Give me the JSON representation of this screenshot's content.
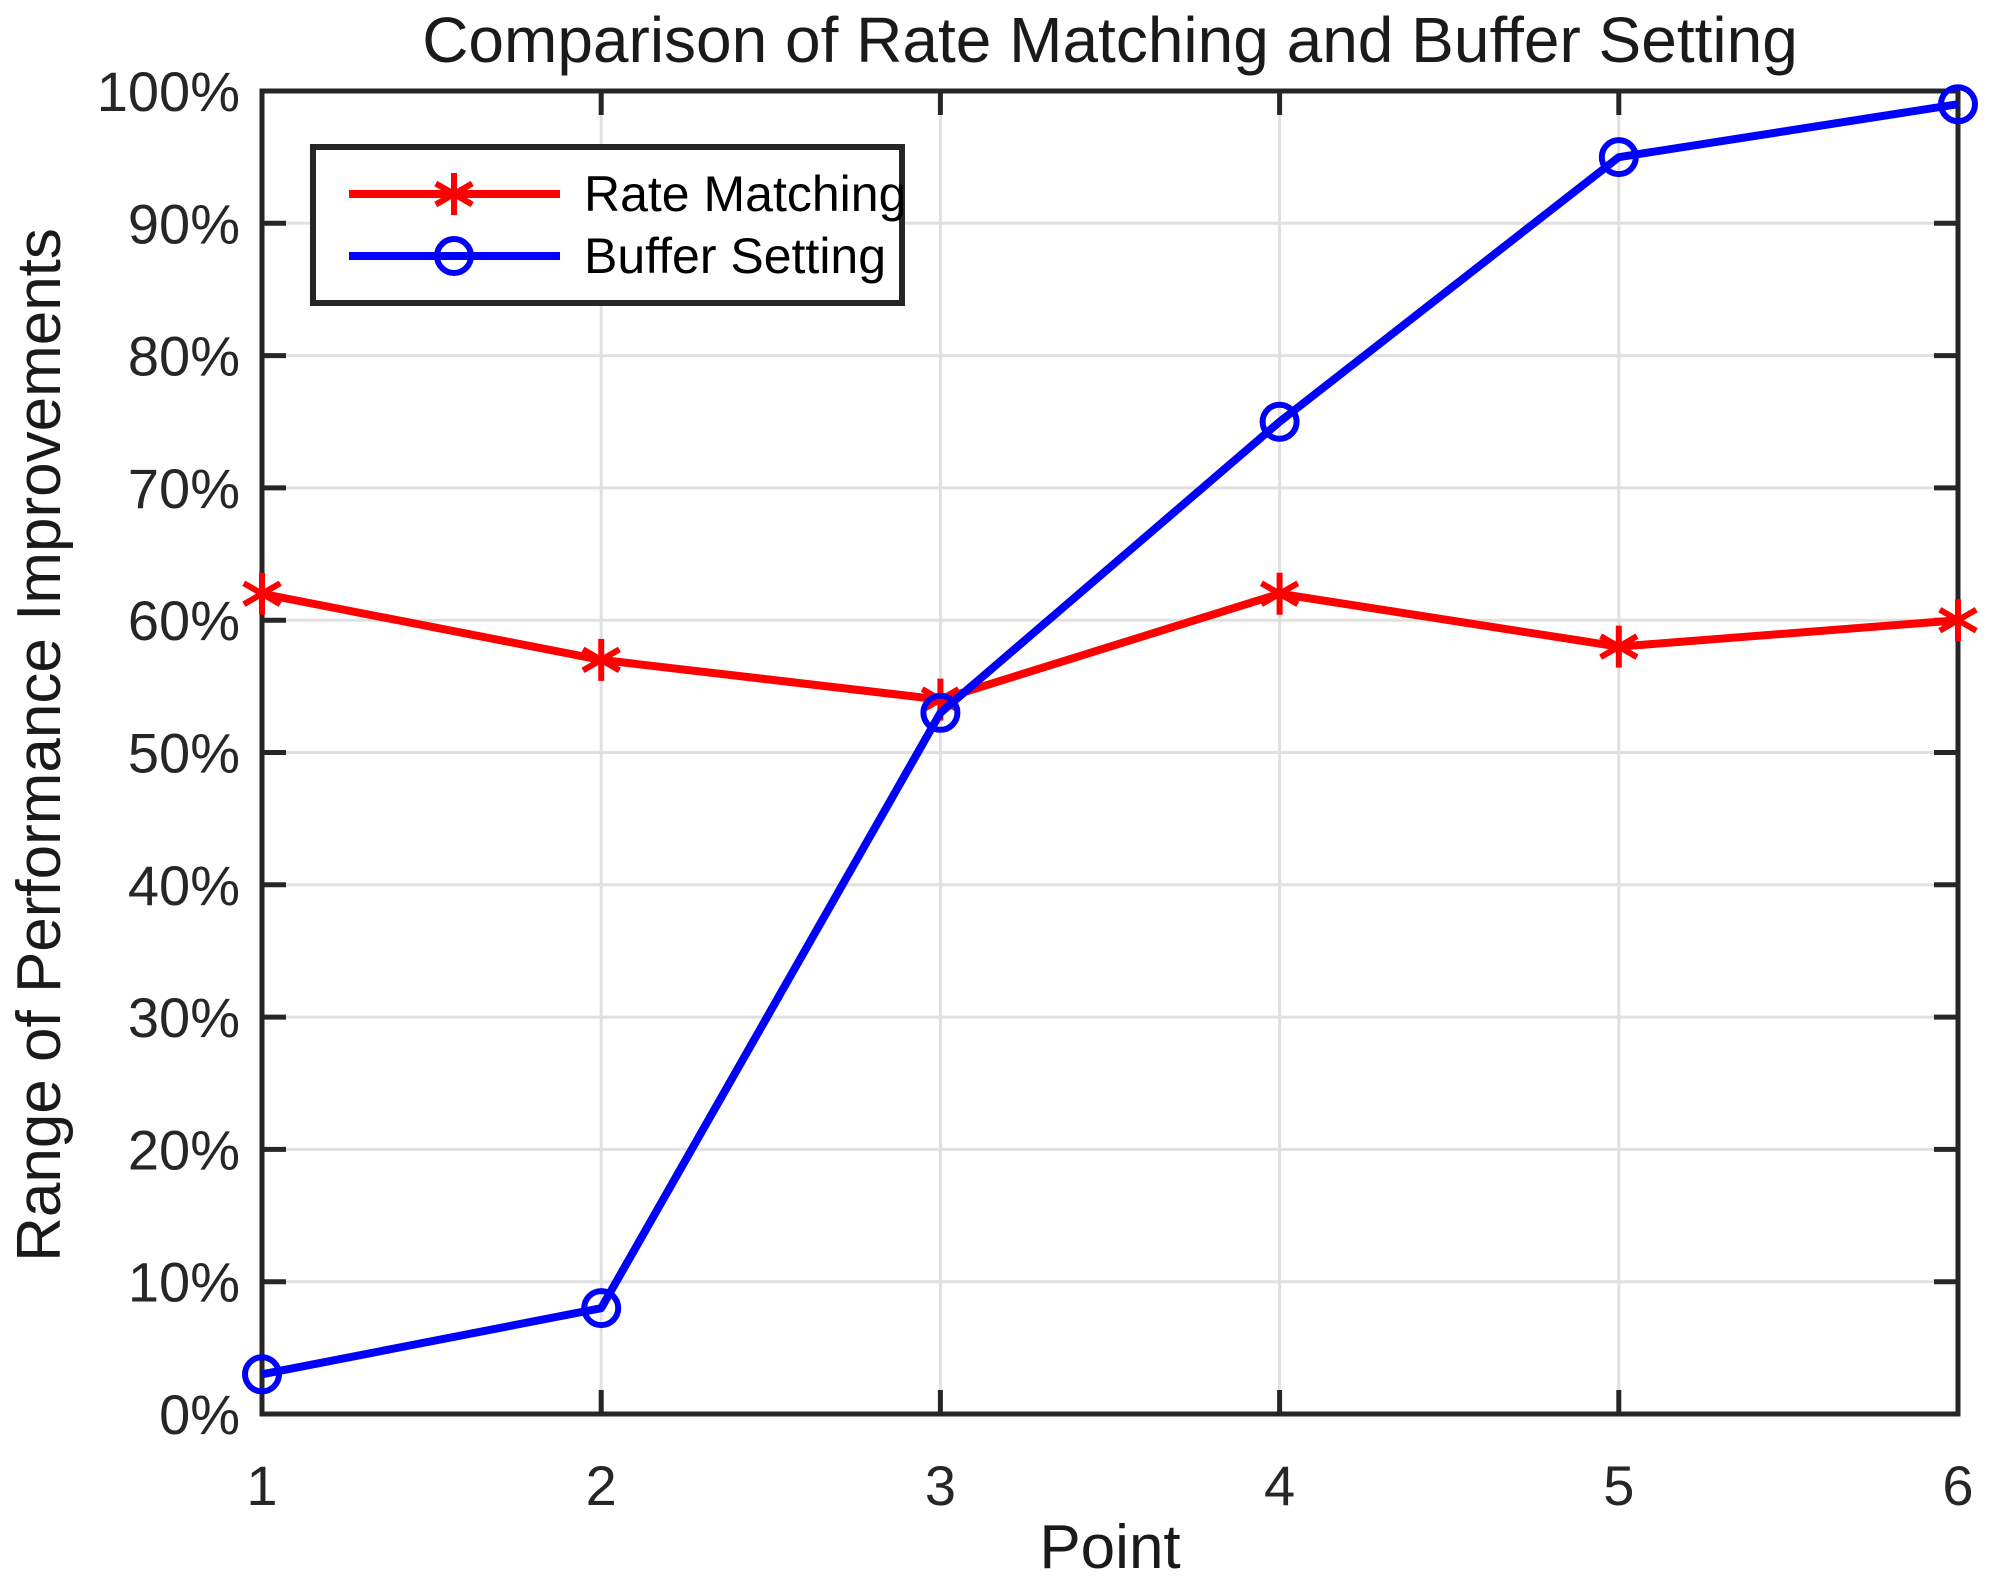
{
  "chart_data": {
    "type": "line",
    "title": "Comparison of Rate Matching and Buffer Setting",
    "xlabel": "Point",
    "ylabel": "Range of Performance Improvements",
    "x": [
      1,
      2,
      3,
      4,
      5,
      6
    ],
    "xlim": [
      1,
      6
    ],
    "ylim": [
      0,
      100
    ],
    "xticklabels": [
      "1",
      "2",
      "3",
      "4",
      "5",
      "6"
    ],
    "yticklabels": [
      "0%",
      "10%",
      "20%",
      "30%",
      "40%",
      "50%",
      "60%",
      "70%",
      "80%",
      "90%",
      "100%"
    ],
    "grid": true,
    "legend": {
      "position": "top-left",
      "entries": [
        "Rate Matching",
        "Buffer Setting"
      ]
    },
    "series": [
      {
        "name": "Rate Matching",
        "color": "#ff0000",
        "marker": "asterisk",
        "values": [
          62,
          57,
          54,
          62,
          58,
          60
        ]
      },
      {
        "name": "Buffer Setting",
        "color": "#0000ff",
        "marker": "circle",
        "values": [
          3,
          8,
          53,
          75,
          95,
          99
        ]
      }
    ],
    "colors": {
      "grid": "#e0e0e0",
      "axis": "#262626",
      "tick_label": "#262626",
      "text": "#1a1a1a",
      "background": "#ffffff"
    }
  }
}
